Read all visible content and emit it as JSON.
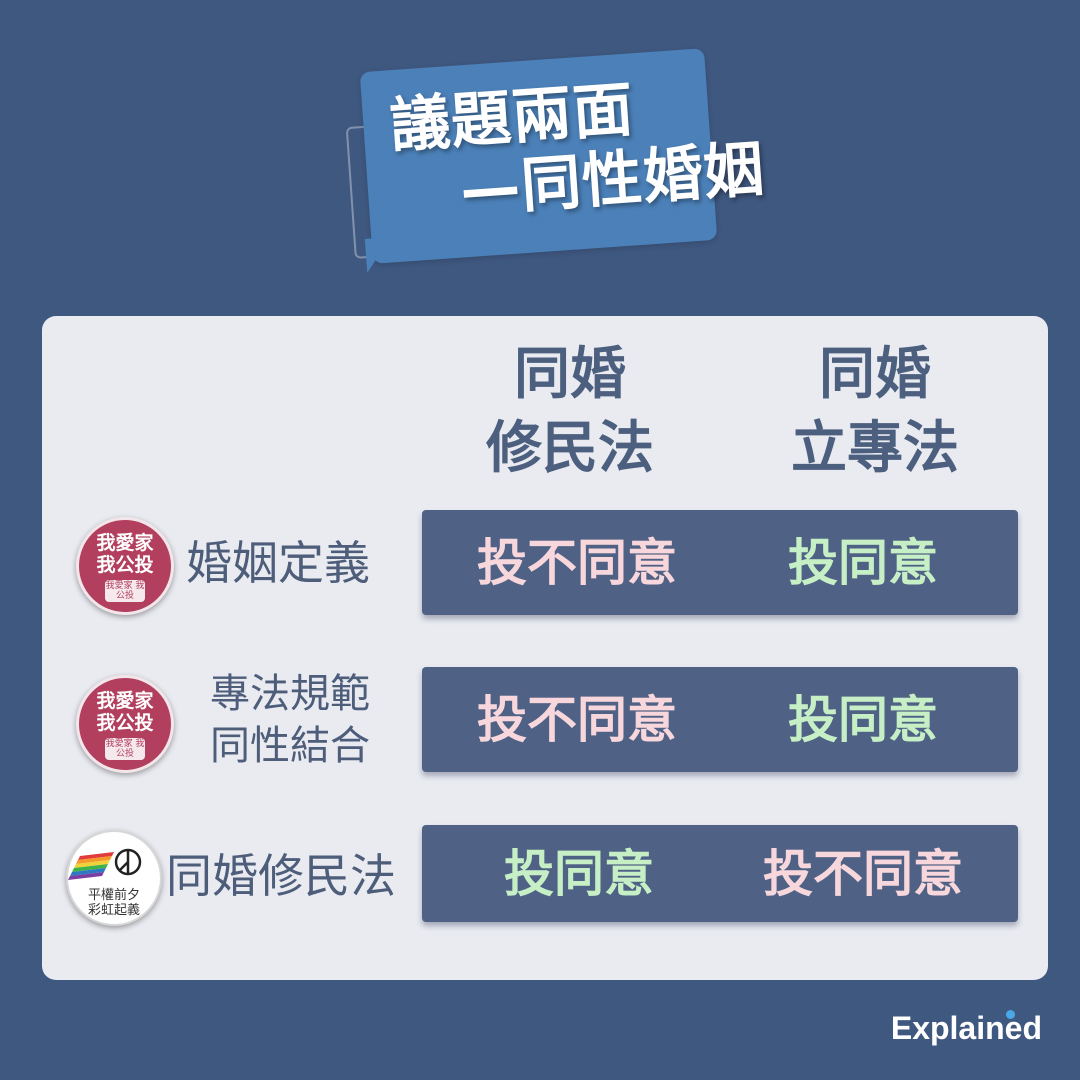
{
  "title": {
    "line1": "議題兩面",
    "line2": "—同性婚姻"
  },
  "columns": [
    {
      "line1": "同婚",
      "line2": "修民法"
    },
    {
      "line1": "同婚",
      "line2": "立專法"
    }
  ],
  "rows": [
    {
      "badge": {
        "type": "red",
        "line1": "我愛家",
        "line2": "我公投",
        "small": "我愛家 我公投"
      },
      "label": "婚姻定義",
      "col1": {
        "text": "投不同意",
        "stance": "disagree"
      },
      "col2": {
        "text": "投同意",
        "stance": "agree"
      }
    },
    {
      "badge": {
        "type": "red",
        "line1": "我愛家",
        "line2": "我公投",
        "small": "我愛家 我公投"
      },
      "label_line1": "專法規範",
      "label_line2": "同性結合",
      "col1": {
        "text": "投不同意",
        "stance": "disagree"
      },
      "col2": {
        "text": "投同意",
        "stance": "agree"
      }
    },
    {
      "badge": {
        "type": "white",
        "line1": "平權前夕",
        "line2": "彩虹起義"
      },
      "label": "同婚修民法",
      "col1": {
        "text": "投同意",
        "stance": "agree"
      },
      "col2": {
        "text": "投不同意",
        "stance": "disagree"
      }
    }
  ],
  "brand": "Explained",
  "colors": {
    "background": "#3f5880",
    "card": "#e9ebf1",
    "row_box": "#4f6184",
    "agree": "#c6efc6",
    "disagree": "#f7d7dc",
    "title_bubble": "#4b80b8"
  }
}
